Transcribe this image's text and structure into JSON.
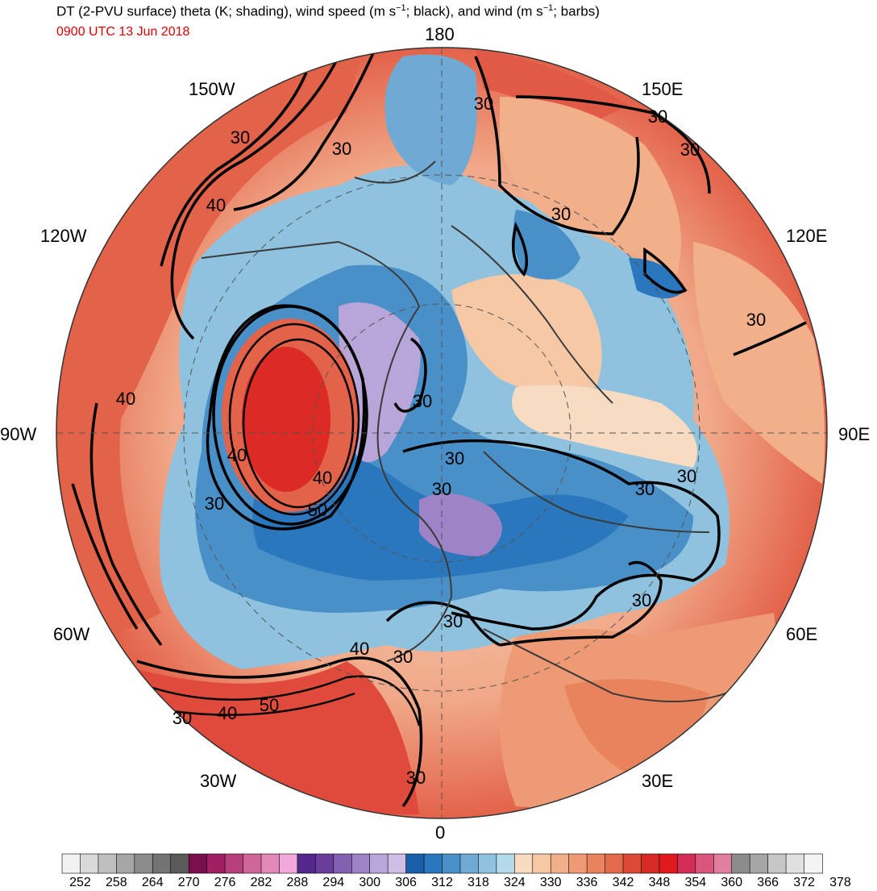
{
  "title": "DT (2-PVU surface) theta (K; shading), wind speed (m s",
  "title_sup1": "−1",
  "title_mid": "; black), and wind (m s",
  "title_sup2": "−1",
  "title_end": "; barbs)",
  "subtitle": "0900 UTC 13 Jun 2018",
  "longitude_labels": {
    "l180": "180",
    "l150w": "150W",
    "l150e": "150E",
    "l120w": "120W",
    "l120e": "120E",
    "l90w": "90W",
    "l90e": "90E",
    "l60w": "60W",
    "l60e": "60E",
    "l30w": "30W",
    "l30e": "30E",
    "l0": "0"
  },
  "contour_labels": [
    "30",
    "30",
    "40",
    "30",
    "30",
    "40",
    "30",
    "40",
    "40",
    "50",
    "30",
    "30",
    "30",
    "30",
    "30",
    "30",
    "30",
    "30",
    "40",
    "30",
    "30",
    "40",
    "50",
    "30",
    "30",
    "30"
  ],
  "colorbar": {
    "labels": [
      "252",
      "258",
      "264",
      "270",
      "276",
      "282",
      "288",
      "294",
      "300",
      "306",
      "312",
      "318",
      "324",
      "330",
      "336",
      "342",
      "348",
      "354",
      "360",
      "366",
      "372",
      "378"
    ],
    "colors": [
      "#f2f2f2",
      "#d9d9d9",
      "#bfbfbf",
      "#a6a6a6",
      "#8c8c8c",
      "#737373",
      "#5a5a5a",
      "#7a0f4d",
      "#9e2063",
      "#b8407a",
      "#cf6699",
      "#e088b8",
      "#f0a8d8",
      "#54278f",
      "#6a3d9a",
      "#8460b0",
      "#9e84c6",
      "#b8a6d8",
      "#cdbfe6",
      "#1a5fa8",
      "#2a77bd",
      "#4a90c8",
      "#6faad4",
      "#8fc2de",
      "#b3dae8",
      "#f7dcc2",
      "#f6c8a6",
      "#f2b08a",
      "#ee9a74",
      "#e9835e",
      "#e36a4a",
      "#dc4a36",
      "#d62a24",
      "#e01a1a",
      "#d42e56",
      "#d8557e",
      "#e07ea0",
      "#8c8c8c",
      "#a6a6a6",
      "#c6c6c6",
      "#e0e0e0",
      "#f4f4f4"
    ]
  }
}
